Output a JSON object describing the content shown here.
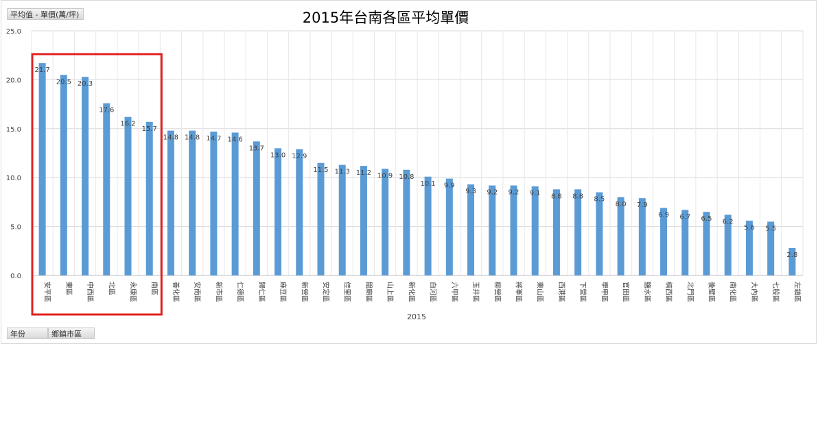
{
  "field_buttons": {
    "value": "平均值 - 單價(萬/坪)",
    "year": "年份",
    "district": "鄉鎮市區"
  },
  "chart_data": {
    "type": "bar",
    "title": "2015年台南各區平均單價",
    "xlabel": "2015",
    "ylabel": "",
    "ylim": [
      0,
      25
    ],
    "yticks": [
      "0.0",
      "5.0",
      "10.0",
      "15.0",
      "20.0",
      "25.0"
    ],
    "grid": true,
    "legend": "none",
    "bar_color": "#5b9bd5",
    "highlight_color": "#e02020",
    "highlight_range": [
      0,
      5
    ],
    "categories": [
      "安平區",
      "東區",
      "中西區",
      "北區",
      "永康區",
      "南區",
      "善化區",
      "安南區",
      "新市區",
      "仁德區",
      "歸仁區",
      "麻豆區",
      "新營區",
      "安定區",
      "佳里區",
      "關廟區",
      "山上區",
      "新化區",
      "白河區",
      "六甲區",
      "玉井區",
      "柳營區",
      "將軍區",
      "東山區",
      "西港區",
      "下營區",
      "學甲區",
      "官田區",
      "鹽水區",
      "楠西區",
      "北門區",
      "後壁區",
      "南化區",
      "大內區",
      "七股區",
      "左鎮區"
    ],
    "values": [
      21.7,
      20.5,
      20.3,
      17.6,
      16.2,
      15.7,
      14.8,
      14.8,
      14.7,
      14.6,
      13.7,
      13.0,
      12.9,
      11.5,
      11.3,
      11.2,
      10.9,
      10.8,
      10.1,
      9.9,
      9.3,
      9.2,
      9.2,
      9.1,
      8.8,
      8.8,
      8.5,
      8.0,
      7.9,
      6.9,
      6.7,
      6.5,
      6.2,
      5.6,
      5.5,
      2.8
    ],
    "data_labels": [
      "21.7",
      "20.5",
      "20.3",
      "17.6",
      "16.2",
      "15.7",
      "14.8",
      "14.8",
      "14.7",
      "14.6",
      "13.7",
      "13.0",
      "12.9",
      "11.5",
      "11.3",
      "11.2",
      "10.9",
      "10.8",
      "10.1",
      "9.9",
      "9.3",
      "9.2",
      "9.2",
      "9.1",
      "8.8",
      "8.8",
      "8.5",
      "8.0",
      "7.9",
      "6.9",
      "6.7",
      "6.5",
      "6.2",
      "5.6",
      "5.5",
      "2.8"
    ]
  }
}
